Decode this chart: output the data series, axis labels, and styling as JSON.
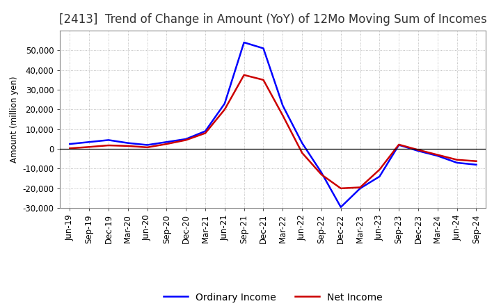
{
  "title": "[2413]  Trend of Change in Amount (YoY) of 12Mo Moving Sum of Incomes",
  "ylabel": "Amount (million yen)",
  "x_labels": [
    "Jun-19",
    "Sep-19",
    "Dec-19",
    "Mar-20",
    "Jun-20",
    "Sep-20",
    "Dec-20",
    "Mar-21",
    "Jun-21",
    "Sep-21",
    "Dec-21",
    "Mar-22",
    "Jun-22",
    "Sep-22",
    "Dec-22",
    "Mar-23",
    "Jun-23",
    "Sep-23",
    "Dec-23",
    "Mar-24",
    "Jun-24",
    "Sep-24"
  ],
  "ordinary_income": [
    2500,
    3500,
    4500,
    3000,
    2000,
    3500,
    5000,
    9000,
    23000,
    54000,
    51000,
    22000,
    3000,
    -12000,
    -29500,
    -20000,
    -14000,
    2000,
    -1000,
    -3500,
    -7000,
    -8000
  ],
  "net_income": [
    300,
    1000,
    1800,
    1500,
    800,
    2500,
    4500,
    8000,
    20000,
    37500,
    35000,
    17000,
    -2000,
    -13000,
    -20000,
    -19500,
    -10500,
    2200,
    -500,
    -3000,
    -5500,
    -6200
  ],
  "ordinary_color": "#0000FF",
  "net_color": "#CC0000",
  "line_width": 1.8,
  "ylim": [
    -30000,
    60000
  ],
  "yticks": [
    -30000,
    -20000,
    -10000,
    0,
    10000,
    20000,
    30000,
    40000,
    50000
  ],
  "background_color": "#FFFFFF",
  "grid_color": "#999999",
  "legend_ordinary": "Ordinary Income",
  "legend_net": "Net Income",
  "title_fontsize": 12,
  "title_color": "#333333",
  "axis_fontsize": 8.5,
  "legend_fontsize": 10
}
